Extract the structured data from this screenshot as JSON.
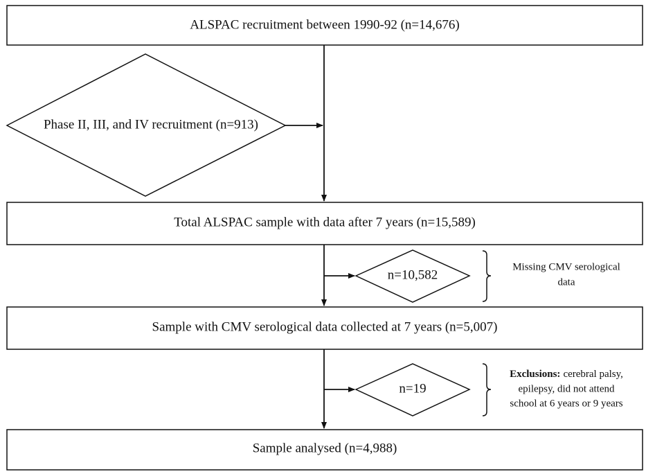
{
  "boxes": [
    {
      "label": "ALSPAC recruitment between 1990-92 (n=14,676)"
    },
    {
      "label": "Total ALSPAC sample with data after 7 years (n=15,589)"
    },
    {
      "label": "Sample with CMV serological data collected at 7 years (n=5,007)"
    },
    {
      "label": "Sample analysed (n=4,988)"
    }
  ],
  "diamonds": [
    {
      "label": "Phase II, III, and IV recruitment (n=913)"
    },
    {
      "label": "n=10,582"
    },
    {
      "label": "n=19"
    }
  ],
  "notes": [
    {
      "lines": [
        "Missing CMV serological",
        "data"
      ]
    },
    {
      "label": "Exclusions:",
      "lines": [
        "cerebral palsy,",
        "epilepsy, did not attend",
        "school at 6 years or 9 years"
      ]
    }
  ]
}
